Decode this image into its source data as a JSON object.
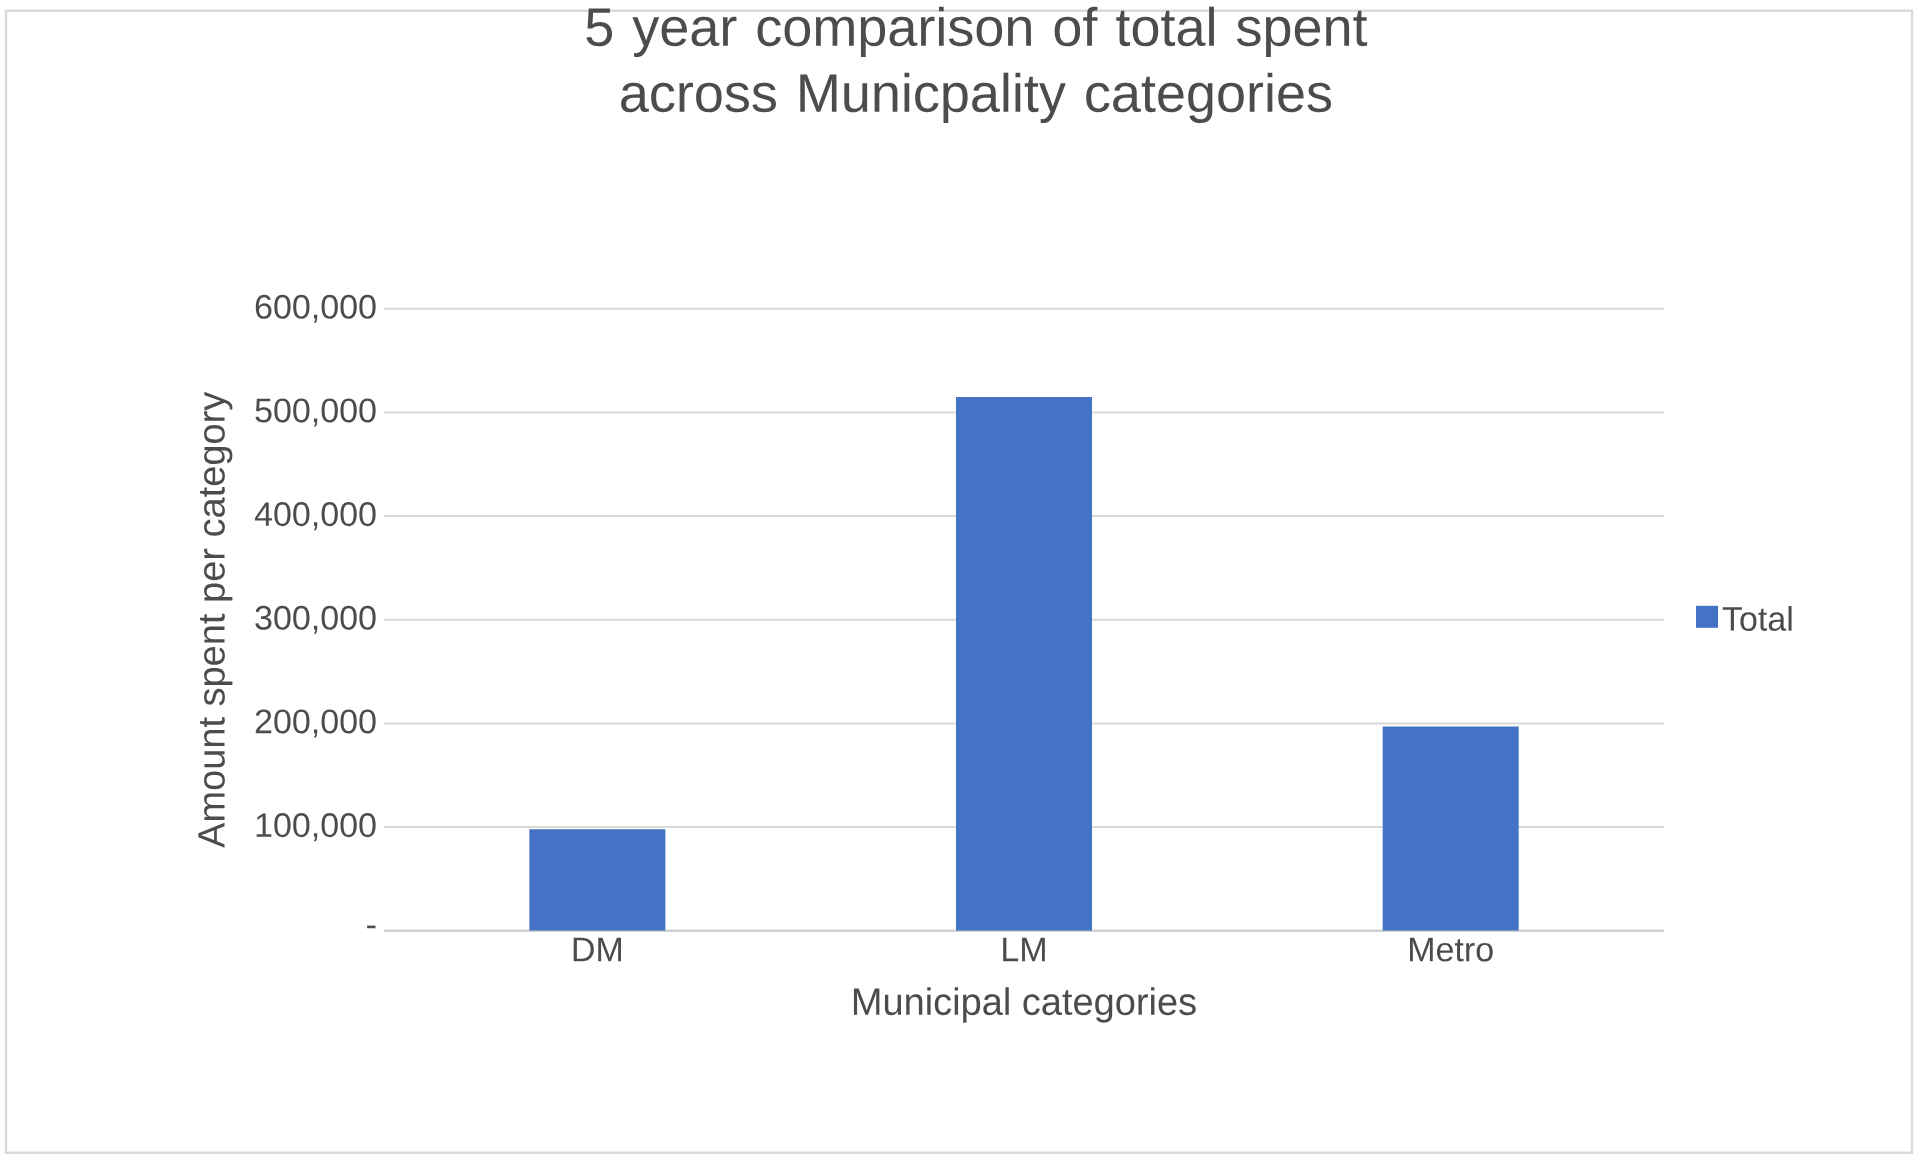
{
  "chart_data": {
    "type": "bar",
    "title": "5 year comparison of total spent across Municpality categories",
    "xlabel": "Municipal categories",
    "ylabel": "Amount spent per category",
    "categories": [
      "DM",
      "LM",
      "Metro"
    ],
    "series": [
      {
        "name": "Total",
        "color": "#4472c4",
        "values": [
          98000,
          515000,
          197000
        ]
      }
    ],
    "ylim": [
      0,
      600000
    ],
    "yticks": [
      {
        "value": 0,
        "label": "-"
      },
      {
        "value": 100000,
        "label": "100,000"
      },
      {
        "value": 200000,
        "label": "200,000"
      },
      {
        "value": 300000,
        "label": "300,000"
      },
      {
        "value": 400000,
        "label": "400,000"
      },
      {
        "value": 500000,
        "label": "500,000"
      },
      {
        "value": 600000,
        "label": "600,000"
      }
    ],
    "grid": "y",
    "legend": "right"
  }
}
